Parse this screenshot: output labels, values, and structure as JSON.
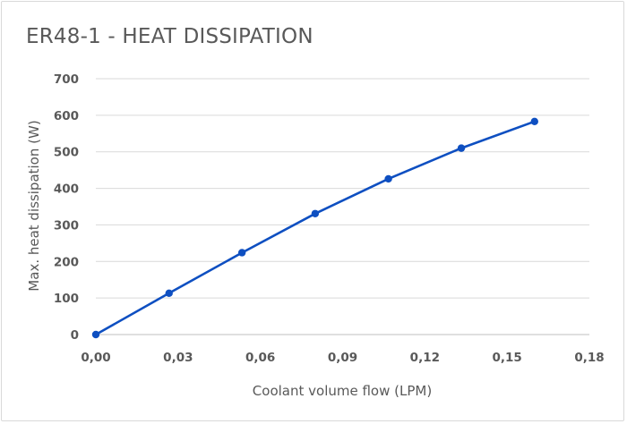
{
  "chart_data": {
    "type": "line",
    "title": "ER48-1 - HEAT DISSIPATION",
    "xlabel": "Coolant volume flow (LPM)",
    "ylabel": "Max. heat dissipation (W)",
    "xlim": [
      0,
      0.18
    ],
    "ylim": [
      0,
      700
    ],
    "xticks": [
      0,
      0.03,
      0.06,
      0.09,
      0.12,
      0.15,
      0.18
    ],
    "xtick_labels": [
      "0,00",
      "0,03",
      "0,06",
      "0,09",
      "0,12",
      "0,15",
      "0,18"
    ],
    "yticks": [
      0,
      100,
      200,
      300,
      400,
      500,
      600,
      700
    ],
    "ytick_labels": [
      "0",
      "100",
      "200",
      "300",
      "400",
      "500",
      "600",
      "700"
    ],
    "grid": true,
    "series": [
      {
        "color": "#0e4fc1",
        "x": [
          0,
          0.0267,
          0.0533,
          0.08,
          0.1067,
          0.1333,
          0.16
        ],
        "y": [
          0,
          113,
          224,
          331,
          426,
          510,
          583
        ]
      }
    ]
  }
}
